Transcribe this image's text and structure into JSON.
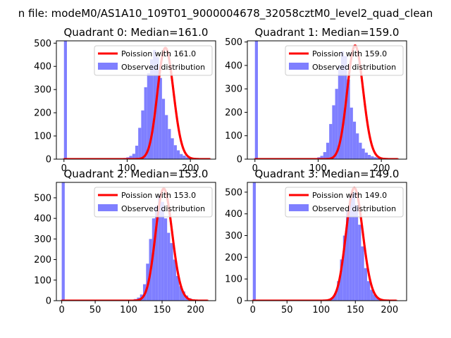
{
  "suptitle": "n file: modeM0/AS1A10_109T01_9000004678_32058cztM0_level2_quad_clean",
  "colors": {
    "hist": "#7f7fff",
    "poisson": "#ff0000",
    "frame": "#000000",
    "text": "#000000"
  },
  "chart_data": [
    {
      "type": "bar",
      "subplot": "Quadrant 0",
      "title": "Quadrant 0: Median=161.0",
      "median": 161.0,
      "xlim": [
        -12,
        240
      ],
      "ylim": [
        0,
        510
      ],
      "xticks": [
        0,
        100,
        200
      ],
      "yticks": [
        0,
        100,
        200,
        300,
        400,
        500
      ],
      "legend": {
        "placement": "upper right",
        "entries": [
          "Poission with 161.0",
          "Observed distribution"
        ]
      },
      "series": [
        {
          "name": "Observed distribution",
          "kind": "histogram",
          "bin_width": 4.7,
          "start": 0,
          "values": [
            510,
            0,
            0,
            0,
            0,
            0,
            0,
            0,
            0,
            0,
            0,
            0,
            0,
            0,
            0,
            0,
            0,
            0,
            0,
            3,
            5,
            8,
            14,
            23,
            58,
            135,
            210,
            310,
            370,
            430,
            470,
            440,
            350,
            260,
            190,
            130,
            90,
            60,
            38,
            22,
            15,
            8,
            5,
            3,
            2,
            1
          ]
        },
        {
          "name": "Poission with 161.0",
          "kind": "line",
          "lambda": 161.0,
          "scale": 480,
          "x_range": [
            0,
            231
          ]
        }
      ]
    },
    {
      "type": "bar",
      "subplot": "Quadrant 1",
      "title": "Quadrant 1: Median=159.0",
      "median": 159.0,
      "xlim": [
        -12,
        240
      ],
      "ylim": [
        0,
        505
      ],
      "xticks": [
        0,
        100,
        200
      ],
      "yticks": [
        0,
        100,
        200,
        300,
        400,
        500
      ],
      "legend": {
        "placement": "upper right",
        "entries": [
          "Poission with 159.0",
          "Observed distribution"
        ]
      },
      "series": [
        {
          "name": "Observed distribution",
          "kind": "histogram",
          "bin_width": 4.7,
          "start": 0,
          "values": [
            505,
            0,
            0,
            0,
            0,
            0,
            0,
            0,
            0,
            0,
            0,
            0,
            0,
            0,
            0,
            0,
            0,
            0,
            0,
            2,
            4,
            8,
            14,
            30,
            70,
            150,
            230,
            300,
            400,
            460,
            440,
            340,
            220,
            160,
            110,
            70,
            45,
            28,
            18,
            12,
            8,
            5,
            3,
            2,
            1
          ]
        },
        {
          "name": "Poission with 159.0",
          "kind": "line",
          "lambda": 159.0,
          "scale": 485,
          "x_range": [
            0,
            226
          ]
        }
      ]
    },
    {
      "type": "bar",
      "subplot": "Quadrant 2",
      "title": "Quadrant 2: Median=153.0",
      "median": 153.0,
      "xlim": [
        -8,
        230
      ],
      "ylim": [
        0,
        575
      ],
      "xticks": [
        0,
        50,
        100,
        150,
        200
      ],
      "yticks": [
        0,
        100,
        200,
        300,
        400,
        500
      ],
      "legend": {
        "placement": "upper right",
        "entries": [
          "Poission with 153.0",
          "Observed distribution"
        ]
      },
      "series": [
        {
          "name": "Observed distribution",
          "kind": "histogram",
          "bin_width": 4.5,
          "start": 0,
          "values": [
            575,
            0,
            0,
            0,
            0,
            0,
            0,
            0,
            0,
            0,
            0,
            0,
            0,
            0,
            0,
            0,
            0,
            0,
            0,
            0,
            0,
            0,
            2,
            4,
            8,
            15,
            30,
            80,
            180,
            300,
            400,
            460,
            510,
            480,
            400,
            330,
            280,
            200,
            120,
            70,
            45,
            25,
            12,
            6,
            3,
            1
          ]
        },
        {
          "name": "Poission with 153.0",
          "kind": "line",
          "lambda": 153.0,
          "scale": 545,
          "x_range": [
            0,
            218
          ]
        }
      ]
    },
    {
      "type": "bar",
      "subplot": "Quadrant 3",
      "title": "Quadrant 3: Median=149.0",
      "median": 149.0,
      "xlim": [
        -8,
        225
      ],
      "ylim": [
        0,
        545
      ],
      "xticks": [
        0,
        50,
        100,
        150,
        200
      ],
      "yticks": [
        0,
        100,
        200,
        300,
        400,
        500
      ],
      "legend": {
        "placement": "upper right",
        "entries": [
          "Poission with 149.0",
          "Observed distribution"
        ]
      },
      "series": [
        {
          "name": "Observed distribution",
          "kind": "histogram",
          "bin_width": 4.4,
          "start": 0,
          "values": [
            545,
            0,
            0,
            0,
            0,
            0,
            0,
            0,
            0,
            0,
            0,
            0,
            0,
            0,
            0,
            0,
            0,
            0,
            0,
            0,
            0,
            0,
            0,
            2,
            4,
            8,
            16,
            35,
            90,
            190,
            300,
            420,
            480,
            500,
            440,
            350,
            250,
            150,
            90,
            50,
            28,
            14,
            7,
            3,
            1
          ]
        },
        {
          "name": "Poission with 149.0",
          "kind": "line",
          "lambda": 149.0,
          "scale": 520,
          "x_range": [
            0,
            210
          ]
        }
      ]
    }
  ]
}
